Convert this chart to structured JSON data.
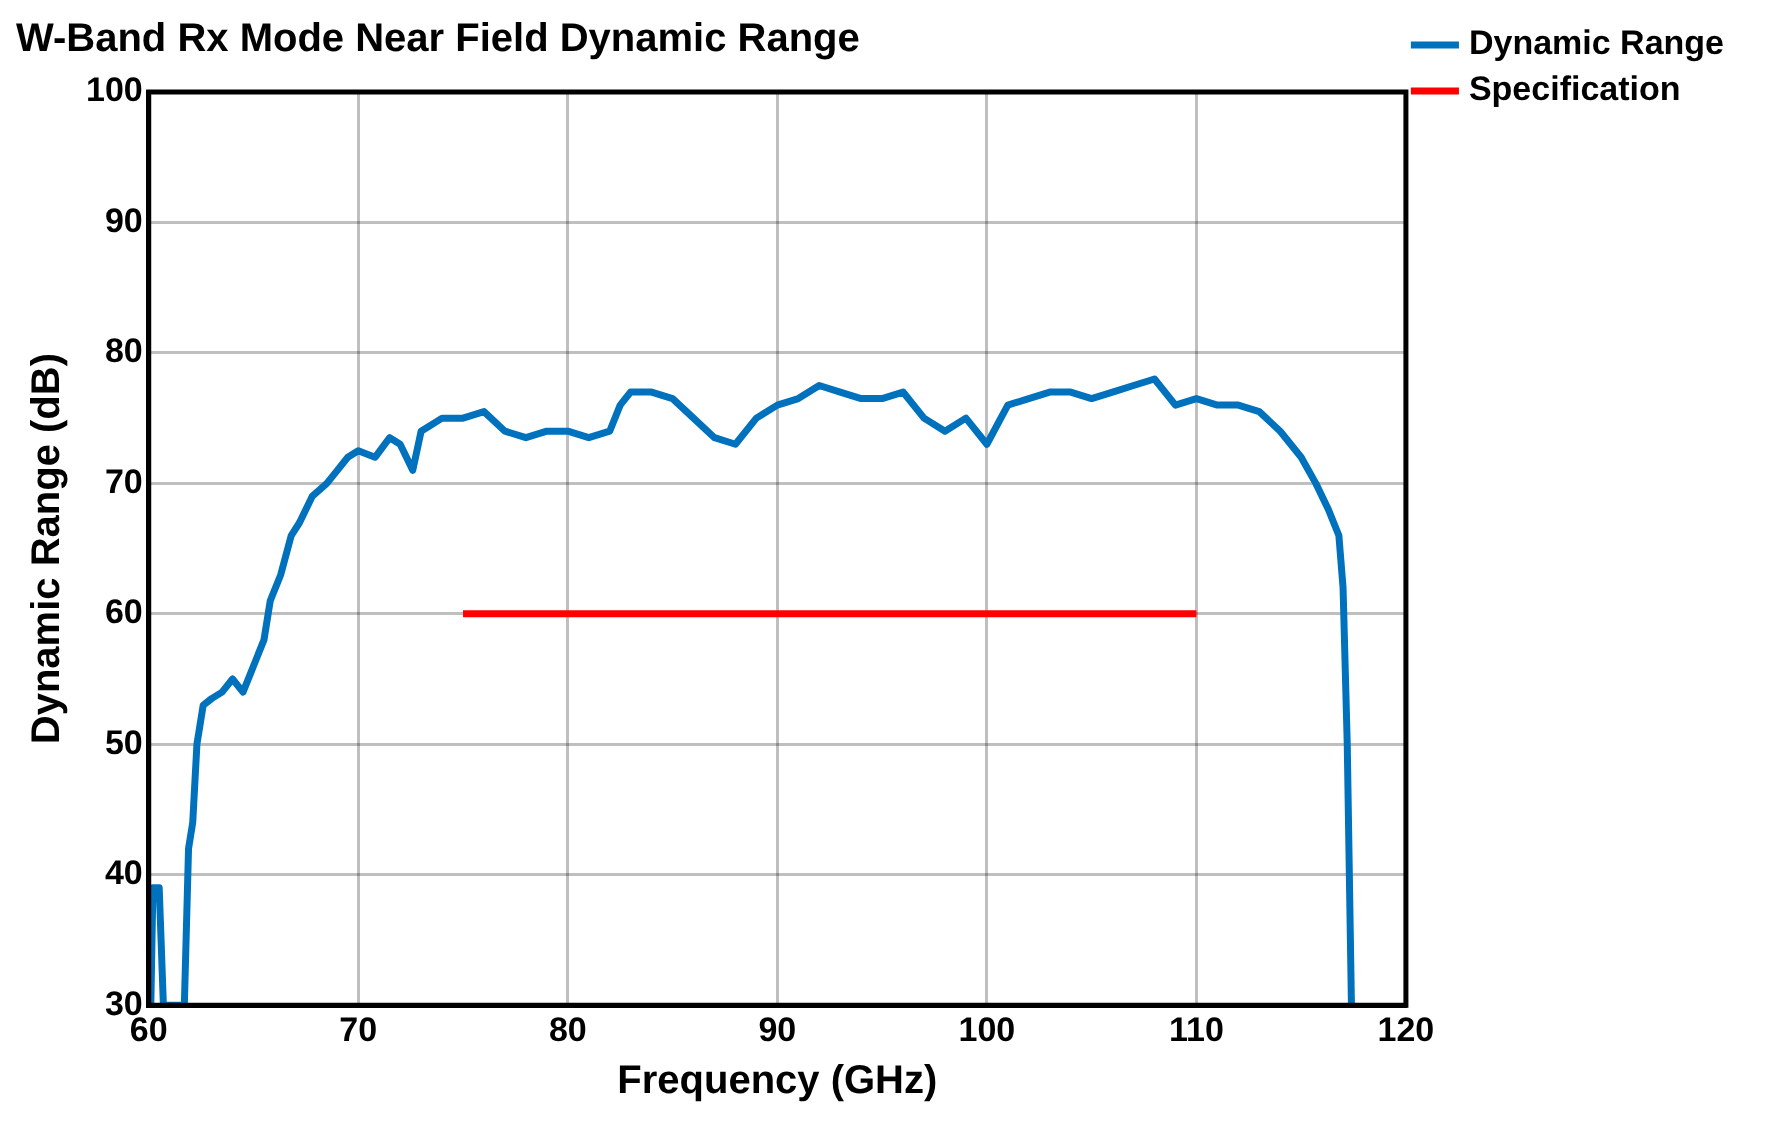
{
  "chart_data": {
    "type": "line",
    "title": "W-Band Rx Mode Near Field Dynamic Range",
    "xlabel": "Frequency (GHz)",
    "ylabel": "Dynamic Range (dB)",
    "xlim": [
      60,
      120
    ],
    "xticks": [
      60,
      70,
      80,
      90,
      100,
      110,
      120
    ],
    "ylim": [
      30,
      100
    ],
    "yticks": [
      30,
      40,
      50,
      60,
      70,
      80,
      90,
      100
    ],
    "grid": true,
    "legend": "top right",
    "marker": "none",
    "line_style": "solid",
    "series": [
      {
        "name": "Dynamic Range",
        "color": "#0072bd",
        "x": [
          60.1,
          60.2,
          60.5,
          60.7,
          61.7,
          61.9,
          62.1,
          62.3,
          62.6,
          63,
          63.5,
          64,
          64.5,
          65,
          65.5,
          65.8,
          66.3,
          66.8,
          67.2,
          67.8,
          68.5,
          69,
          69.5,
          70,
          70.8,
          71.5,
          72,
          72.6,
          73,
          74,
          75,
          76,
          77,
          78,
          79,
          80,
          81,
          82,
          82.5,
          83,
          84,
          85,
          86,
          87,
          88,
          89,
          90,
          91,
          92,
          93,
          94,
          95,
          96,
          97,
          98,
          99,
          100,
          101,
          102,
          103,
          104,
          105,
          106,
          107,
          108,
          109,
          110,
          111,
          112,
          113,
          114,
          115,
          115.7,
          116.3,
          116.8,
          117,
          117.2,
          117.4
        ],
        "values": [
          30,
          39,
          39,
          30,
          30,
          42,
          44,
          50,
          53,
          53.5,
          54,
          55,
          54,
          56,
          58,
          61,
          63,
          66,
          67,
          69,
          70,
          71,
          72,
          72.5,
          72,
          73.5,
          73,
          71,
          74,
          75,
          75,
          75.5,
          74,
          73.5,
          74,
          74,
          73.5,
          74,
          76,
          77,
          77,
          76.5,
          75,
          73.5,
          73,
          75,
          76,
          76.5,
          77.5,
          77,
          76.5,
          76.5,
          77,
          75,
          74,
          75,
          73,
          76,
          76.5,
          77,
          77,
          76.5,
          77,
          77.5,
          78,
          76,
          76.5,
          76,
          76,
          75.5,
          74,
          72,
          70,
          68,
          66,
          62,
          50,
          30
        ]
      },
      {
        "name": "Specification",
        "color": "#ff0000",
        "x": [
          75,
          110
        ],
        "values": [
          60,
          60
        ]
      }
    ]
  }
}
